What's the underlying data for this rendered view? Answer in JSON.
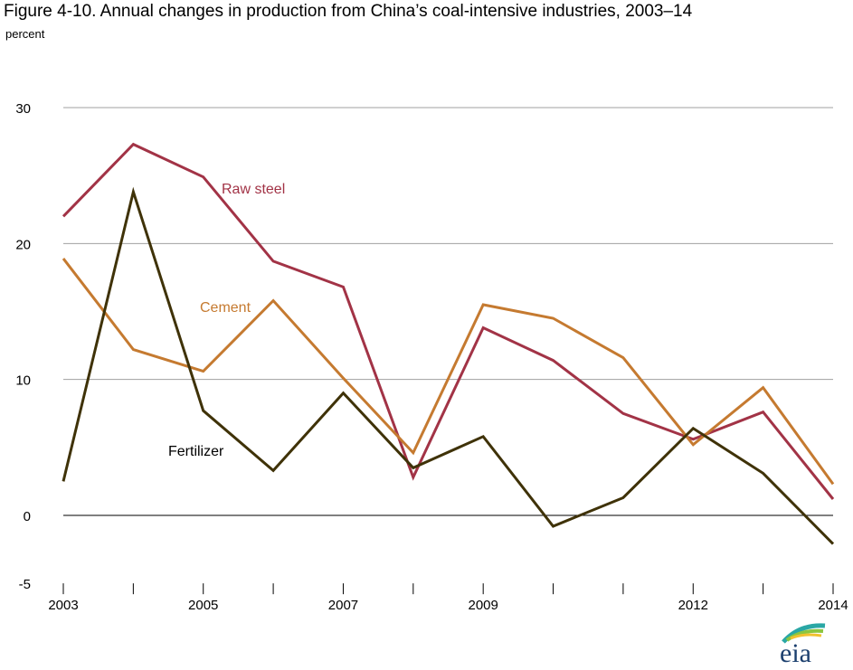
{
  "title": "Figure 4-10. Annual changes in production from China’s coal-intensive industries, 2003–14",
  "unit_label": "percent",
  "logo_text": "eia",
  "colors": {
    "raw_steel": "#a23346",
    "cement": "#c57a30",
    "fertilizer": "#3f3208",
    "gridline": "#a0a0a0",
    "zero_line": "#000000",
    "logo_text": "#1b3f6e",
    "logo_arc_teal": "#2aa7a5",
    "logo_arc_green": "#8cc63f",
    "logo_arc_yellow": "#f2c12e"
  },
  "chart_data": {
    "type": "line",
    "x": [
      2003,
      2004,
      2005,
      2006,
      2007,
      2008,
      2009,
      2010,
      2011,
      2012,
      2013,
      2014
    ],
    "xticks": [
      "2003",
      "2005",
      "2007",
      "2009",
      "2012",
      "2014"
    ],
    "xtick_values": [
      2003,
      2005,
      2007,
      2009,
      2012,
      2014
    ],
    "yticks": [
      "30",
      "20",
      "10",
      "0",
      "-5"
    ],
    "ytick_values": [
      30,
      20,
      10,
      0,
      -5
    ],
    "ylim": [
      -5,
      30
    ],
    "xlim": [
      2003,
      2014
    ],
    "grid": true,
    "series": [
      {
        "name": "Raw steel",
        "color_key": "raw_steel",
        "values": [
          22.0,
          27.3,
          24.9,
          18.7,
          16.8,
          2.8,
          13.8,
          11.4,
          7.5,
          5.6,
          7.6,
          1.2
        ]
      },
      {
        "name": "Cement",
        "color_key": "cement",
        "values": [
          18.9,
          12.2,
          10.6,
          15.8,
          10.1,
          4.6,
          15.5,
          14.5,
          11.6,
          5.2,
          9.4,
          2.3
        ]
      },
      {
        "name": "Fertilizer",
        "color_key": "fertilizer",
        "values": [
          2.5,
          23.8,
          7.7,
          3.3,
          9.0,
          3.5,
          5.8,
          -0.8,
          1.3,
          6.4,
          3.1,
          -2.1
        ]
      }
    ],
    "annotations": [
      "Raw steel",
      "Cement",
      "Fertilizer"
    ]
  }
}
